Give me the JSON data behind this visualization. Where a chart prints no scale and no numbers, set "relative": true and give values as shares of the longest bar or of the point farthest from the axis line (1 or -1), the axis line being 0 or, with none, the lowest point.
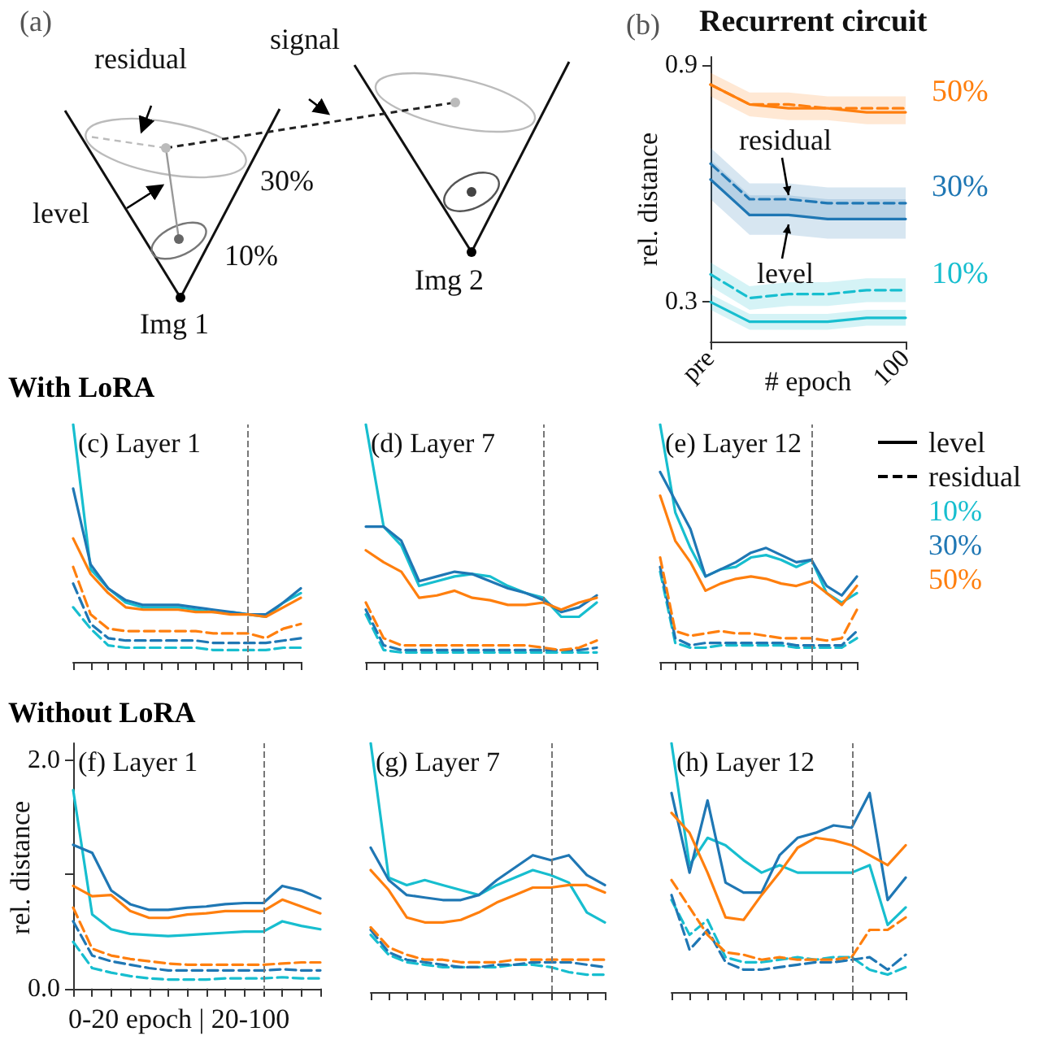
{
  "chart_data": [
    {
      "type": "other",
      "annotations": [
        "(a)",
        "residual",
        "signal",
        "level",
        "30%",
        "10%",
        "Img 1",
        "Img 2"
      ]
    },
    {
      "type": "line",
      "title": "Recurrent circuit",
      "xlabel": "# epoch",
      "ylabel": "rel. distance",
      "categories": [
        "pre",
        null,
        null,
        null,
        null,
        "100"
      ],
      "ylim": [
        0.2,
        0.92
      ],
      "yticks": [
        0.3,
        0.9
      ],
      "marker": "none",
      "annotations": [
        "(b)",
        {
          "text": "residual",
          "y": 0.56
        },
        {
          "text": "level",
          "y": 0.51
        }
      ],
      "series": [
        {
          "color": "#17becf",
          "line_style": "solid",
          "values": [
            0.3,
            0.25,
            0.25,
            0.25,
            0.26,
            0.26
          ],
          "lower": [
            0.28,
            0.23,
            0.23,
            0.23,
            0.24,
            0.24
          ],
          "upper": [
            0.32,
            0.27,
            0.27,
            0.27,
            0.28,
            0.28
          ]
        },
        {
          "color": "#1f77b4",
          "line_style": "solid",
          "values": [
            0.61,
            0.52,
            0.52,
            0.51,
            0.51,
            0.51
          ],
          "lower": [
            0.56,
            0.47,
            0.47,
            0.46,
            0.46,
            0.46
          ],
          "upper": [
            0.66,
            0.57,
            0.57,
            0.56,
            0.56,
            0.56
          ]
        },
        {
          "color": "#ff7f0e",
          "line_style": "solid",
          "values": [
            0.85,
            0.8,
            0.79,
            0.79,
            0.78,
            0.78
          ],
          "lower": [
            0.82,
            0.77,
            0.76,
            0.76,
            0.75,
            0.75
          ],
          "upper": [
            0.88,
            0.83,
            0.83,
            0.82,
            0.82,
            0.82
          ]
        },
        {
          "name": "10%",
          "color": "#17becf",
          "line_style": "dashed",
          "values": [
            0.37,
            0.31,
            0.32,
            0.32,
            0.33,
            0.33
          ],
          "lower": [
            0.34,
            0.28,
            0.29,
            0.29,
            0.3,
            0.3
          ],
          "upper": [
            0.4,
            0.34,
            0.35,
            0.35,
            0.36,
            0.36
          ]
        },
        {
          "name": "30%",
          "color": "#1f77b4",
          "line_style": "dashed",
          "values": [
            0.65,
            0.56,
            0.56,
            0.55,
            0.55,
            0.55
          ],
          "lower": [
            0.61,
            0.52,
            0.52,
            0.51,
            0.51,
            0.51
          ],
          "upper": [
            0.69,
            0.6,
            0.6,
            0.59,
            0.59,
            0.59
          ]
        },
        {
          "name": "50%",
          "color": "#ff7f0e",
          "line_style": "dashed",
          "values": [
            0.85,
            0.8,
            0.8,
            0.79,
            0.79,
            0.79
          ]
        }
      ]
    },
    {
      "type": "line",
      "title": "(c) Layer 1",
      "relative": true,
      "tick_labels": false,
      "marker": "none",
      "annotations": [
        "With LoRA"
      ],
      "categories": [
        null,
        null,
        null,
        null,
        null,
        null,
        null,
        null,
        null,
        null,
        null,
        null,
        null,
        null
      ],
      "series": [
        {
          "color": "#17becf",
          "line_style": "solid",
          "values": [
            1,
            0.39,
            0.31,
            0.25,
            0.23,
            0.23,
            0.23,
            0.22,
            0.21,
            0.21,
            0.2,
            0.19,
            0.25,
            0.29
          ]
        },
        {
          "color": "#1f77b4",
          "line_style": "solid",
          "values": [
            0.73,
            0.41,
            0.31,
            0.26,
            0.24,
            0.24,
            0.24,
            0.23,
            0.22,
            0.21,
            0.2,
            0.2,
            0.25,
            0.31
          ]
        },
        {
          "color": "#ff7f0e",
          "line_style": "solid",
          "values": [
            0.52,
            0.37,
            0.29,
            0.23,
            0.22,
            0.22,
            0.22,
            0.21,
            0.21,
            0.2,
            0.2,
            0.19,
            0.23,
            0.27
          ]
        },
        {
          "color": "#17becf",
          "line_style": "dashed",
          "values": [
            0.23,
            0.14,
            0.07,
            0.06,
            0.06,
            0.06,
            0.06,
            0.06,
            0.05,
            0.05,
            0.05,
            0.05,
            0.06,
            0.06
          ]
        },
        {
          "color": "#1f77b4",
          "line_style": "dashed",
          "values": [
            0.33,
            0.16,
            0.1,
            0.09,
            0.09,
            0.09,
            0.09,
            0.09,
            0.08,
            0.08,
            0.08,
            0.08,
            0.09,
            0.1
          ]
        },
        {
          "color": "#ff7f0e",
          "line_style": "dashed",
          "values": [
            0.4,
            0.2,
            0.14,
            0.13,
            0.13,
            0.13,
            0.13,
            0.13,
            0.12,
            0.12,
            0.12,
            0.1,
            0.14,
            0.16
          ]
        }
      ]
    },
    {
      "type": "line",
      "title": "(d) Layer 7",
      "relative": true,
      "tick_labels": false,
      "marker": "none",
      "categories": [
        null,
        null,
        null,
        null,
        null,
        null,
        null,
        null,
        null,
        null,
        null,
        null,
        null,
        null
      ],
      "series": [
        {
          "color": "#17becf",
          "line_style": "solid",
          "values": [
            1,
            0.57,
            0.49,
            0.32,
            0.34,
            0.36,
            0.37,
            0.36,
            0.32,
            0.29,
            0.27,
            0.19,
            0.19,
            0.25
          ]
        },
        {
          "color": "#1f77b4",
          "line_style": "solid",
          "values": [
            0.57,
            0.57,
            0.51,
            0.34,
            0.36,
            0.38,
            0.37,
            0.34,
            0.31,
            0.29,
            0.26,
            0.21,
            0.23,
            0.28
          ]
        },
        {
          "color": "#ff7f0e",
          "line_style": "solid",
          "values": [
            0.47,
            0.42,
            0.38,
            0.27,
            0.28,
            0.3,
            0.27,
            0.26,
            0.24,
            0.24,
            0.25,
            0.22,
            0.25,
            0.27
          ]
        },
        {
          "color": "#17becf",
          "line_style": "dashed",
          "values": [
            0.2,
            0.05,
            0.04,
            0.04,
            0.04,
            0.04,
            0.04,
            0.04,
            0.04,
            0.04,
            0.04,
            0.04,
            0.04,
            0.04
          ]
        },
        {
          "color": "#1f77b4",
          "line_style": "dashed",
          "values": [
            0.22,
            0.07,
            0.05,
            0.05,
            0.05,
            0.05,
            0.05,
            0.05,
            0.05,
            0.05,
            0.05,
            0.05,
            0.05,
            0.06
          ]
        },
        {
          "color": "#ff7f0e",
          "line_style": "dashed",
          "values": [
            0.25,
            0.1,
            0.07,
            0.07,
            0.07,
            0.07,
            0.07,
            0.07,
            0.07,
            0.07,
            0.06,
            0.05,
            0.06,
            0.09
          ]
        }
      ]
    },
    {
      "type": "line",
      "title": "(e) Layer 12",
      "relative": true,
      "tick_labels": false,
      "marker": "none",
      "annotations": [
        "level",
        "residual",
        "10%",
        "30%",
        "50%"
      ],
      "categories": [
        null,
        null,
        null,
        null,
        null,
        null,
        null,
        null,
        null,
        null,
        null,
        null,
        null,
        null
      ],
      "series": [
        {
          "color": "#17becf",
          "line_style": "solid",
          "values": [
            1,
            0.63,
            0.48,
            0.36,
            0.39,
            0.4,
            0.44,
            0.45,
            0.43,
            0.4,
            0.43,
            0.29,
            0.25,
            0.29
          ]
        },
        {
          "color": "#1f77b4",
          "line_style": "solid",
          "values": [
            0.8,
            0.68,
            0.56,
            0.36,
            0.39,
            0.42,
            0.46,
            0.48,
            0.45,
            0.42,
            0.43,
            0.32,
            0.28,
            0.36
          ]
        },
        {
          "color": "#ff7f0e",
          "line_style": "solid",
          "values": [
            0.7,
            0.51,
            0.42,
            0.3,
            0.33,
            0.35,
            0.36,
            0.35,
            0.33,
            0.32,
            0.34,
            0.29,
            0.24,
            0.32
          ]
        },
        {
          "color": "#17becf",
          "line_style": "dashed",
          "values": [
            0.38,
            0.08,
            0.06,
            0.06,
            0.07,
            0.07,
            0.07,
            0.07,
            0.07,
            0.06,
            0.06,
            0.06,
            0.06,
            0.1
          ]
        },
        {
          "color": "#1f77b4",
          "line_style": "dashed",
          "values": [
            0.4,
            0.1,
            0.07,
            0.08,
            0.08,
            0.08,
            0.08,
            0.08,
            0.08,
            0.07,
            0.07,
            0.07,
            0.07,
            0.13
          ]
        },
        {
          "color": "#ff7f0e",
          "line_style": "dashed",
          "values": [
            0.44,
            0.13,
            0.11,
            0.12,
            0.13,
            0.12,
            0.12,
            0.11,
            0.1,
            0.1,
            0.1,
            0.09,
            0.1,
            0.22
          ]
        }
      ]
    },
    {
      "type": "line",
      "title": "(f) Layer 1",
      "ylabel": "rel. distance",
      "ylim": [
        -0.03,
        2.15
      ],
      "yticks": [
        {
          "value": 0,
          "label": "0.0"
        },
        {
          "value": 1,
          "label": null
        },
        {
          "value": 2,
          "label": "2.0"
        }
      ],
      "tick_labels": "y",
      "marker": "none",
      "annotations": [
        "Without LoRA",
        "0-20 epoch | 20-100"
      ],
      "categories": [
        null,
        null,
        null,
        null,
        null,
        null,
        null,
        null,
        null,
        null,
        null,
        null,
        null,
        null
      ],
      "series": [
        {
          "color": "#17becf",
          "line_style": "solid",
          "values": [
            1.74,
            0.65,
            0.52,
            0.48,
            0.47,
            0.46,
            0.47,
            0.48,
            0.49,
            0.5,
            0.5,
            0.59,
            0.55,
            0.52
          ]
        },
        {
          "color": "#1f77b4",
          "line_style": "solid",
          "values": [
            1.26,
            1.19,
            0.86,
            0.74,
            0.69,
            0.69,
            0.71,
            0.72,
            0.74,
            0.75,
            0.75,
            0.9,
            0.86,
            0.79
          ]
        },
        {
          "color": "#ff7f0e",
          "line_style": "solid",
          "values": [
            0.9,
            0.81,
            0.82,
            0.68,
            0.62,
            0.62,
            0.65,
            0.66,
            0.68,
            0.68,
            0.68,
            0.78,
            0.72,
            0.66
          ]
        },
        {
          "color": "#17becf",
          "line_style": "dashed",
          "values": [
            0.41,
            0.18,
            0.14,
            0.11,
            0.09,
            0.08,
            0.08,
            0.08,
            0.09,
            0.09,
            0.09,
            0.1,
            0.09,
            0.09
          ]
        },
        {
          "color": "#1f77b4",
          "line_style": "dashed",
          "values": [
            0.59,
            0.29,
            0.24,
            0.21,
            0.18,
            0.16,
            0.16,
            0.16,
            0.16,
            0.16,
            0.16,
            0.17,
            0.16,
            0.16
          ]
        },
        {
          "color": "#ff7f0e",
          "line_style": "dashed",
          "values": [
            0.71,
            0.35,
            0.29,
            0.26,
            0.24,
            0.22,
            0.21,
            0.21,
            0.21,
            0.21,
            0.21,
            0.22,
            0.23,
            0.23
          ]
        }
      ]
    },
    {
      "type": "line",
      "title": "(g) Layer 7",
      "relative": true,
      "tick_labels": false,
      "marker": "none",
      "categories": [
        null,
        null,
        null,
        null,
        null,
        null,
        null,
        null,
        null,
        null,
        null,
        null,
        null,
        null
      ],
      "series": [
        {
          "color": "#17becf",
          "line_style": "solid",
          "values": [
            1,
            0.46,
            0.43,
            0.45,
            0.43,
            0.41,
            0.39,
            0.43,
            0.46,
            0.49,
            0.47,
            0.44,
            0.32,
            0.28
          ]
        },
        {
          "color": "#1f77b4",
          "line_style": "solid",
          "values": [
            0.58,
            0.45,
            0.39,
            0.38,
            0.37,
            0.37,
            0.39,
            0.45,
            0.5,
            0.55,
            0.53,
            0.55,
            0.47,
            0.43
          ]
        },
        {
          "color": "#ff7f0e",
          "line_style": "solid",
          "values": [
            0.49,
            0.41,
            0.3,
            0.28,
            0.28,
            0.29,
            0.32,
            0.36,
            0.39,
            0.42,
            0.42,
            0.43,
            0.43,
            0.4
          ]
        },
        {
          "color": "#17becf",
          "line_style": "dashed",
          "values": [
            0.23,
            0.15,
            0.12,
            0.11,
            0.1,
            0.1,
            0.1,
            0.1,
            0.11,
            0.11,
            0.1,
            0.08,
            0.07,
            0.07
          ]
        },
        {
          "color": "#1f77b4",
          "line_style": "dashed",
          "values": [
            0.25,
            0.16,
            0.13,
            0.12,
            0.11,
            0.1,
            0.1,
            0.11,
            0.11,
            0.12,
            0.12,
            0.12,
            0.11,
            0.1
          ]
        },
        {
          "color": "#ff7f0e",
          "line_style": "dashed",
          "values": [
            0.26,
            0.18,
            0.15,
            0.13,
            0.13,
            0.12,
            0.12,
            0.12,
            0.13,
            0.13,
            0.13,
            0.13,
            0.13,
            0.13
          ]
        }
      ]
    },
    {
      "type": "line",
      "title": "(h) Layer 12",
      "relative": true,
      "tick_labels": false,
      "marker": "none",
      "categories": [
        null,
        null,
        null,
        null,
        null,
        null,
        null,
        null,
        null,
        null,
        null,
        null,
        null,
        null
      ],
      "series": [
        {
          "color": "#17becf",
          "line_style": "solid",
          "values": [
            1,
            0.51,
            0.62,
            0.59,
            0.53,
            0.48,
            0.51,
            0.48,
            0.48,
            0.48,
            0.48,
            0.51,
            0.27,
            0.34
          ]
        },
        {
          "color": "#1f77b4",
          "line_style": "solid",
          "values": [
            0.8,
            0.48,
            0.77,
            0.44,
            0.4,
            0.4,
            0.55,
            0.62,
            0.64,
            0.67,
            0.66,
            0.8,
            0.37,
            0.46
          ]
        },
        {
          "color": "#ff7f0e",
          "line_style": "solid",
          "values": [
            0.72,
            0.64,
            0.48,
            0.3,
            0.29,
            0.39,
            0.48,
            0.58,
            0.62,
            0.61,
            0.59,
            0.55,
            0.51,
            0.59
          ]
        },
        {
          "color": "#17becf",
          "line_style": "dashed",
          "values": [
            0.37,
            0.23,
            0.29,
            0.14,
            0.12,
            0.12,
            0.13,
            0.14,
            0.13,
            0.14,
            0.14,
            0.09,
            0.07,
            0.1
          ]
        },
        {
          "color": "#1f77b4",
          "line_style": "dashed",
          "values": [
            0.39,
            0.17,
            0.25,
            0.12,
            0.09,
            0.09,
            0.1,
            0.11,
            0.12,
            0.12,
            0.13,
            0.14,
            0.09,
            0.15
          ]
        },
        {
          "color": "#ff7f0e",
          "line_style": "dashed",
          "values": [
            0.45,
            0.34,
            0.23,
            0.16,
            0.15,
            0.13,
            0.14,
            0.13,
            0.13,
            0.13,
            0.14,
            0.25,
            0.25,
            0.3
          ]
        }
      ]
    }
  ]
}
